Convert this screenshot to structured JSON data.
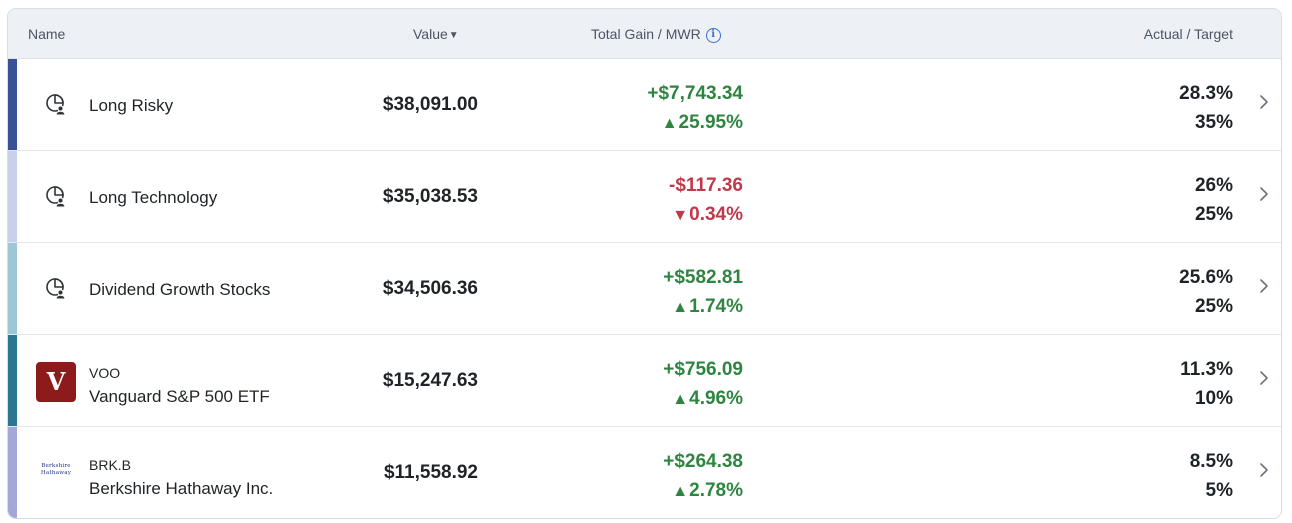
{
  "header": {
    "name": "Name",
    "value": "Value",
    "sort_indicator": "▼",
    "gain": "Total Gain / MWR",
    "info_icon": "i",
    "target": "Actual / Target"
  },
  "rows": [
    {
      "name": "Long Risky",
      "ticker": "",
      "value": "$38,091.00",
      "gain": "+$7,743.34",
      "arrow": "▲",
      "mwr": "25.95%",
      "actual": "28.3%",
      "target": "35%",
      "bar_color": "#3b5196",
      "icon": "portfolio-icon",
      "trend": "up"
    },
    {
      "name": "Long Technology",
      "ticker": "",
      "value": "$35,038.53",
      "gain": "-$117.36",
      "arrow": "▼",
      "mwr": "0.34%",
      "actual": "26%",
      "target": "25%",
      "bar_color": "#c9d1ea",
      "icon": "portfolio-icon",
      "trend": "down"
    },
    {
      "name": "Dividend Growth Stocks",
      "ticker": "",
      "value": "$34,506.36",
      "gain": "+$582.81",
      "arrow": "▲",
      "mwr": "1.74%",
      "actual": "25.6%",
      "target": "25%",
      "bar_color": "#9ec7d6",
      "icon": "portfolio-icon",
      "trend": "up"
    },
    {
      "name": "Vanguard S&P 500 ETF",
      "ticker": "VOO",
      "value": "$15,247.63",
      "gain": "+$756.09",
      "arrow": "▲",
      "mwr": "4.96%",
      "actual": "11.3%",
      "target": "10%",
      "bar_color": "#2b7690",
      "icon": "vanguard-logo",
      "logo_text": "V",
      "trend": "up"
    },
    {
      "name": "Berkshire Hathaway Inc.",
      "ticker": "BRK.B",
      "value": "$11,558.92",
      "gain": "+$264.38",
      "arrow": "▲",
      "mwr": "2.78%",
      "actual": "8.5%",
      "target": "5%",
      "bar_color": "#a3a8d8",
      "icon": "berkshire-logo",
      "logo_text": "Berkshire Hathaway",
      "trend": "up"
    }
  ],
  "colors": {
    "positive": "#2e8540",
    "negative": "#c0394b"
  }
}
